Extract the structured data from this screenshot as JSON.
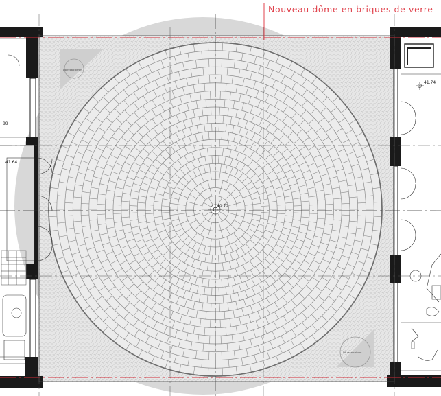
{
  "callout": {
    "label": "Nouveau dôme en briques de verre"
  },
  "levels": {
    "center": "40.72",
    "right_room": "41.74",
    "left_room": "41.64",
    "left_upper": "99"
  },
  "corner_notes": {
    "top_left": "Dô recalcaitron",
    "bottom_right": "Dô recalcaitron"
  },
  "dome": {
    "ring_count": 20,
    "segments_per_ring": 72
  },
  "colors": {
    "callout": "#e0434d",
    "axis": "#d12a35",
    "brick_fill": "#e9e9e9",
    "brick_line": "#8c8c8c",
    "paving": "#dcdcdc",
    "wall": "#1a1a1a",
    "shadow": "#d6d6d6"
  }
}
